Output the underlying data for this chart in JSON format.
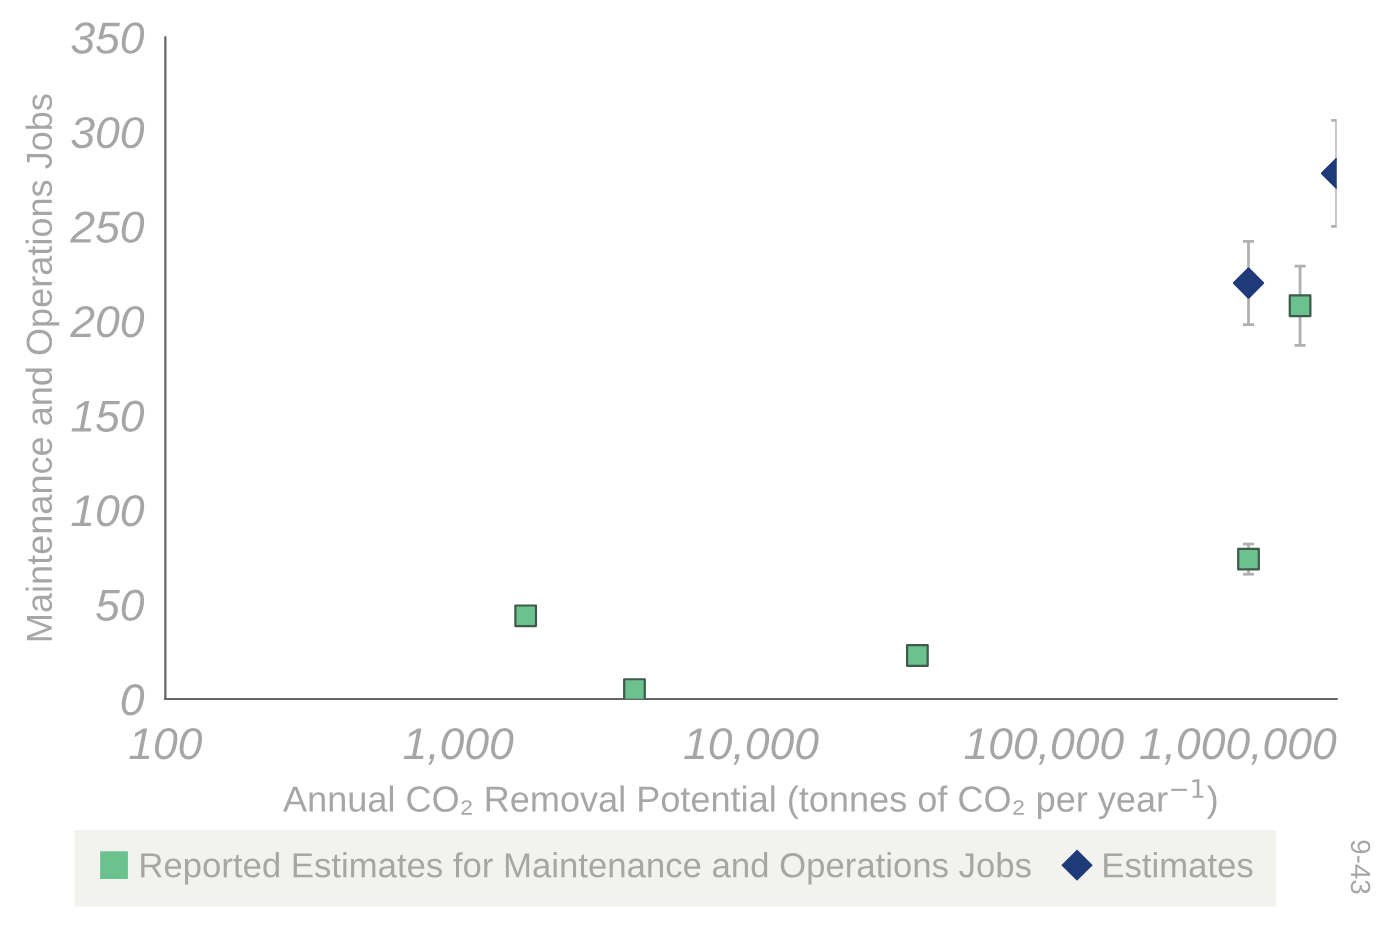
{
  "chart_data": {
    "type": "scatter",
    "xlabel": "Annual CO₂ Removal Potential (tonnes of CO₂ per year$^{−1}$)",
    "ylabel": "Maintenance and Operations Jobs",
    "log": "x",
    "xlim": [
      100,
      1000000
    ],
    "xticks": [
      {
        "value": 100,
        "label": "100"
      },
      {
        "value": 1000,
        "label": "1,000"
      },
      {
        "value": 10000,
        "label": "10,000"
      },
      {
        "value": 100000,
        "label": "100,000"
      },
      {
        "value": 1000000,
        "label": "1,000,000"
      }
    ],
    "ylim": [
      0,
      350
    ],
    "yticks": [
      0,
      50,
      100,
      150,
      200,
      250,
      300,
      350
    ],
    "grid": false,
    "legend": "bottom",
    "series": [
      {
        "name": "Reported Estimates for Maintenance and Operations Jobs",
        "color": "#6cc28f",
        "marker": "square",
        "x": [
          1700,
          4000,
          37000,
          500000,
          750000
        ],
        "values": [
          44,
          5,
          23,
          74,
          208
        ],
        "errors": [
          null,
          null,
          null,
          8,
          21
        ]
      },
      {
        "name": "Estimates",
        "color": "#1f3a78",
        "marker": "diamond",
        "x": [
          500000,
          1000000
        ],
        "values": [
          220,
          278
        ],
        "errors": [
          22,
          28
        ]
      }
    ],
    "annotations": [
      "9-43"
    ]
  }
}
